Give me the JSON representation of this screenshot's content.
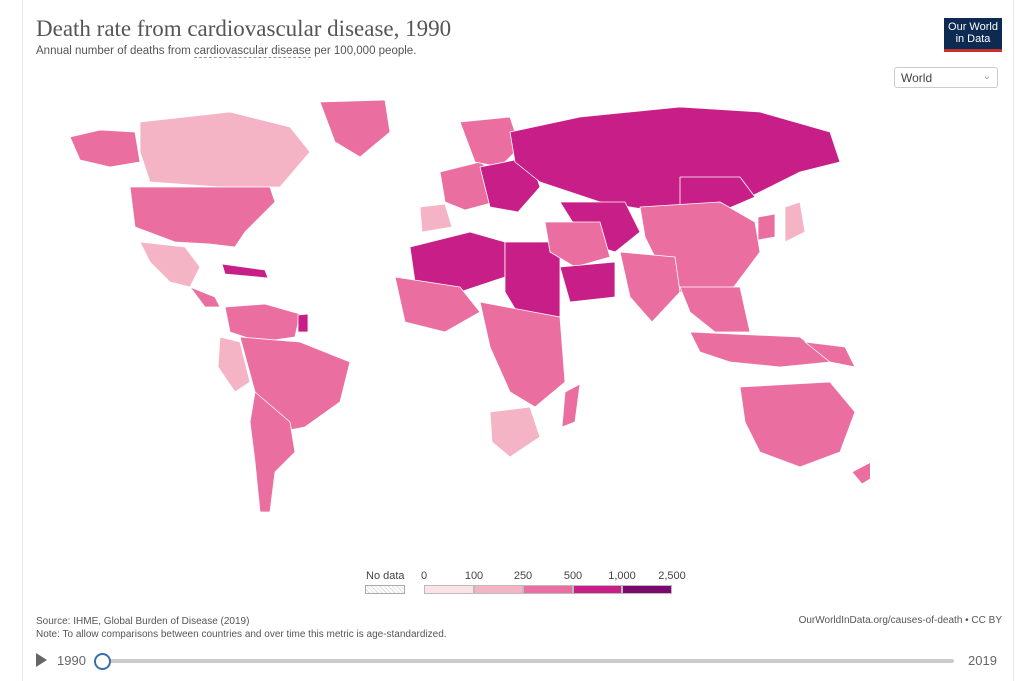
{
  "title": "Death rate from cardiovascular disease, 1990",
  "subtitle": {
    "prefix": "Annual number of deaths from ",
    "term": "cardiovascular disease",
    "suffix": " per 100,000 people."
  },
  "logo": {
    "line1": "Our World",
    "line2": "in Data"
  },
  "region_select": {
    "value": "World"
  },
  "legend": {
    "no_data_label": "No data",
    "ticks": [
      "0",
      "100",
      "250",
      "500",
      "1,000",
      "2,500"
    ],
    "bins": [
      {
        "from": 0,
        "to": 100,
        "color": "#fbe3e8"
      },
      {
        "from": 100,
        "to": 250,
        "color": "#f5b3c6"
      },
      {
        "from": 250,
        "to": 500,
        "color": "#ea6fa0"
      },
      {
        "from": 500,
        "to": 1000,
        "color": "#c71e87"
      },
      {
        "from": 1000,
        "to": 2500,
        "color": "#7a0a6d"
      }
    ]
  },
  "map_regions": [
    {
      "name": "Alaska",
      "bin": 2
    },
    {
      "name": "Canada",
      "bin": 1
    },
    {
      "name": "Greenland",
      "bin": 2
    },
    {
      "name": "United States",
      "bin": 2
    },
    {
      "name": "Mexico",
      "bin": 1
    },
    {
      "name": "Central America",
      "bin": 2
    },
    {
      "name": "Caribbean",
      "bin": 3
    },
    {
      "name": "South America North",
      "bin": 2
    },
    {
      "name": "Guyana",
      "bin": 3
    },
    {
      "name": "Peru",
      "bin": 1
    },
    {
      "name": "Brazil",
      "bin": 2
    },
    {
      "name": "Southern Cone",
      "bin": 2
    },
    {
      "name": "Iberia",
      "bin": 1
    },
    {
      "name": "Western Europe",
      "bin": 2
    },
    {
      "name": "Scandinavia",
      "bin": 2
    },
    {
      "name": "Eastern Europe",
      "bin": 3
    },
    {
      "name": "Russia",
      "bin": 3
    },
    {
      "name": "Central Asia",
      "bin": 3
    },
    {
      "name": "North Africa",
      "bin": 3
    },
    {
      "name": "Egypt and Sudan",
      "bin": 3
    },
    {
      "name": "Middle East",
      "bin": 2
    },
    {
      "name": "Yemen and Oman",
      "bin": 3
    },
    {
      "name": "West Africa",
      "bin": 2
    },
    {
      "name": "Central and East Africa",
      "bin": 2
    },
    {
      "name": "Southern Africa",
      "bin": 1
    },
    {
      "name": "Madagascar",
      "bin": 2
    },
    {
      "name": "Mongolia",
      "bin": 3
    },
    {
      "name": "China",
      "bin": 2
    },
    {
      "name": "Japan",
      "bin": 1
    },
    {
      "name": "Korea",
      "bin": 2
    },
    {
      "name": "India",
      "bin": 2
    },
    {
      "name": "Southeast Asia",
      "bin": 2
    },
    {
      "name": "Indonesia",
      "bin": 2
    },
    {
      "name": "Papua New Guinea",
      "bin": 2
    },
    {
      "name": "Australia",
      "bin": 2
    },
    {
      "name": "New Zealand",
      "bin": 2
    }
  ],
  "source": "Source: IHME, Global Burden of Disease (2019)",
  "note": "Note: To allow comparisons between countries and over time this metric is age-standardized.",
  "url": "OurWorldInData.org/causes-of-death • CC BY",
  "timeline": {
    "start_year": "1990",
    "end_year": "2019",
    "selected_year": 1990
  }
}
